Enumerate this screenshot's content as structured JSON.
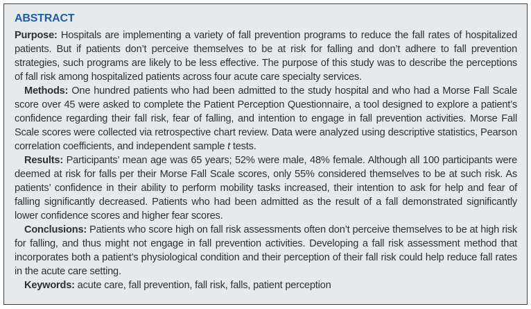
{
  "abstract": {
    "heading": "ABSTRACT",
    "sections": [
      {
        "id": "purpose",
        "label": "Purpose:",
        "parts": [
          {
            "text": " Hospitals are implementing a variety of fall prevention programs to reduce the fall rates of hospitalized patients. But if patients don’t perceive themselves to be at risk for falling and don’t adhere to fall prevention strategies, such programs are likely to be less effective. The purpose of this study was to describe the perceptions of fall risk among hospitalized patients across four acute care specialty services."
          }
        ]
      },
      {
        "id": "methods",
        "label": "Methods:",
        "parts": [
          {
            "text": " One hundred patients who had been admitted to the study hospital and who had a Morse Fall Scale score over 45 were asked to complete the Patient Perception Questionnaire, a tool designed to explore a patient’s confidence regarding their fall risk, fear of falling, and intention to engage in fall prevention activities. Morse Fall Scale scores were collected via retrospective chart review. Data were analyzed using descriptive statistics, Pearson correlation coefficients, and independent sample "
          },
          {
            "text": "t",
            "italic": true
          },
          {
            "text": " tests."
          }
        ]
      },
      {
        "id": "results",
        "label": "Results:",
        "parts": [
          {
            "text": " Participants’ mean age was 65 years; 52% were male, 48% female. Although all 100 participants were deemed at risk for falls per their Morse Fall Scale scores, only 55% considered themselves to be at such risk. As patients’ confidence in their ability to perform mobility tasks increased, their intention to ask for help and fear of falling significantly decreased. Patients who had been admitted as the result of a fall demonstrated significantly lower confidence scores and higher fear scores."
          }
        ]
      },
      {
        "id": "conclusions",
        "label": "Conclusions:",
        "parts": [
          {
            "text": " Patients who score high on fall risk assessments often don’t perceive themselves to be at high risk for falling, and thus might not engage in fall prevention activities. Developing a fall risk assessment method that incorporates both a patient’s physiological condition and their perception of their fall risk could help reduce fall rates in the acute care setting."
          }
        ]
      },
      {
        "id": "keywords",
        "label": "Keywords:",
        "parts": [
          {
            "text": " acute care, fall prevention, fall risk, falls, patient perception"
          }
        ]
      }
    ],
    "colors": {
      "heading_blue": "#1d5ca9",
      "body_text": "#2e2f33",
      "box_background": "#e7eaed",
      "box_border": "#3d3f42"
    }
  }
}
